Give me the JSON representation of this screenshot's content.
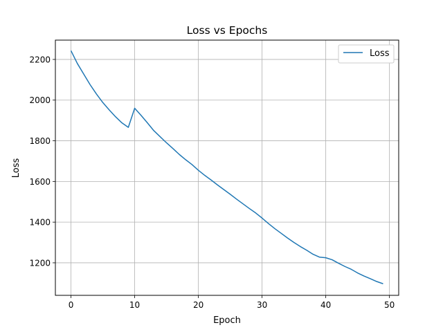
{
  "chart_data": {
    "type": "line",
    "title": "Loss vs Epochs",
    "xlabel": "Epoch",
    "ylabel": "Loss",
    "xlim": [
      -2.45,
      51.45
    ],
    "ylim": [
      1040,
      2295
    ],
    "x_ticks": [
      0,
      10,
      20,
      30,
      40,
      50
    ],
    "y_ticks": [
      1200,
      1400,
      1600,
      1800,
      2000,
      2200
    ],
    "grid": true,
    "legend_position": "top-right",
    "series": [
      {
        "name": "Loss",
        "color": "#1f77b4",
        "x": [
          0,
          1,
          2,
          3,
          4,
          5,
          6,
          7,
          8,
          9,
          10,
          11,
          12,
          13,
          14,
          15,
          16,
          17,
          18,
          19,
          20,
          21,
          22,
          23,
          24,
          25,
          26,
          27,
          28,
          29,
          30,
          31,
          32,
          33,
          34,
          35,
          36,
          37,
          38,
          39,
          40,
          41,
          42,
          43,
          44,
          45,
          46,
          47,
          48,
          49
        ],
        "y": [
          2243,
          2180,
          2128,
          2076,
          2030,
          1988,
          1952,
          1918,
          1888,
          1866,
          1960,
          1925,
          1888,
          1850,
          1820,
          1790,
          1762,
          1733,
          1707,
          1683,
          1655,
          1630,
          1607,
          1583,
          1560,
          1537,
          1513,
          1490,
          1467,
          1445,
          1420,
          1393,
          1368,
          1345,
          1322,
          1300,
          1280,
          1262,
          1242,
          1228,
          1225,
          1215,
          1198,
          1182,
          1168,
          1150,
          1135,
          1122,
          1108,
          1097
        ]
      }
    ]
  }
}
